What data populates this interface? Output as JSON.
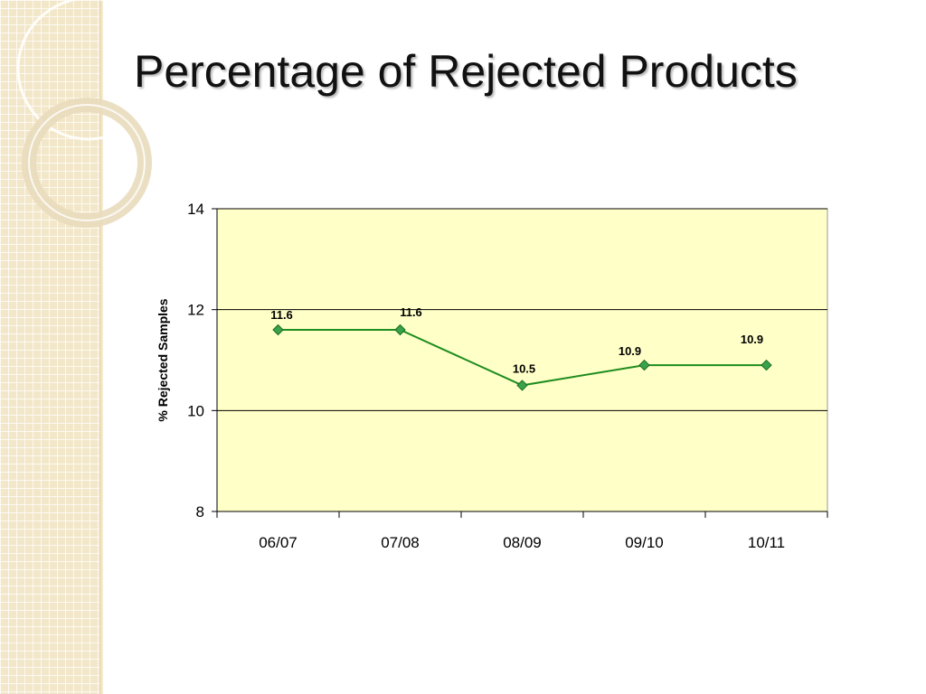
{
  "slide": {
    "title": "Percentage of Rejected Products"
  },
  "colors": {
    "plot_background": "#ffffc8",
    "series_line": "#1e8c1e",
    "marker_fill": "#3aa24a",
    "gridline": "#000000",
    "side_band": "#f3e7c9"
  },
  "chart_data": {
    "type": "line",
    "title": "",
    "xlabel": "",
    "ylabel": "% Rejected Samples",
    "categories": [
      "06/07",
      "07/08",
      "08/09",
      "09/10",
      "10/11"
    ],
    "series": [
      {
        "values": [
          11.6,
          11.6,
          10.5,
          10.9,
          10.9
        ],
        "data_labels": [
          "11.6",
          "11.6",
          "10.5",
          "10.9",
          "10.9"
        ],
        "marker": "diamond"
      }
    ],
    "ylim": [
      8,
      14
    ],
    "yticks": [
      8,
      10,
      12,
      14
    ],
    "ytick_labels": [
      "8",
      "10",
      "12",
      "14"
    ],
    "grid": "horizontal",
    "legend": "none"
  }
}
